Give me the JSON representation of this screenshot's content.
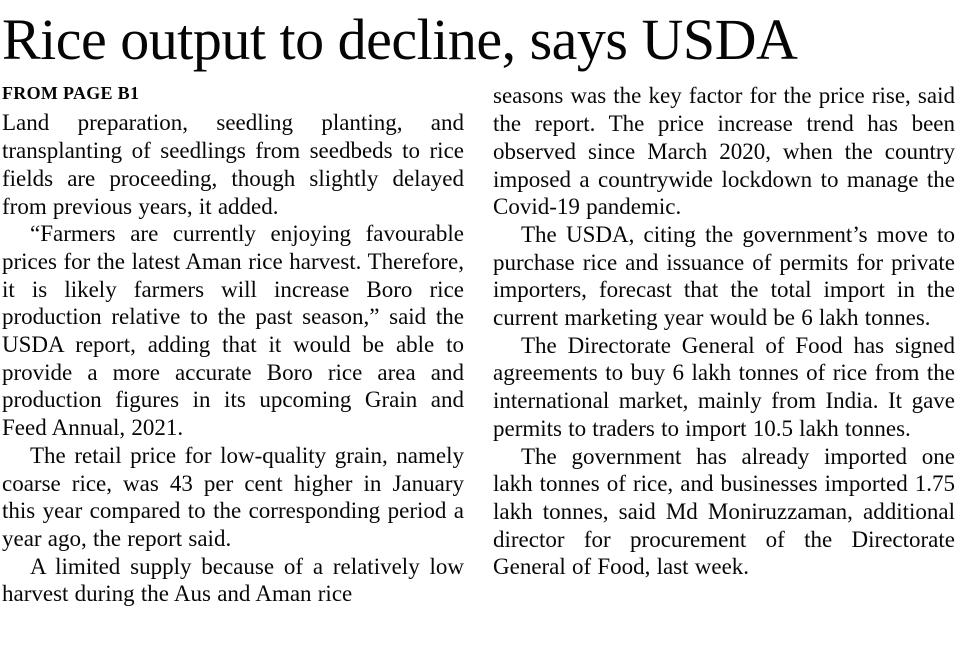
{
  "colors": {
    "background": "#ffffff",
    "text": "#060606"
  },
  "article": {
    "headline": "Rice output to decline, says USDA",
    "kicker": "FROM PAGE B1",
    "columns": {
      "left": [
        "Land preparation, seedling planting, and transplanting of seedlings from seedbeds to rice fields are proceeding, though slightly delayed from previous years, it added.",
        "“Farmers are currently enjoying favourable prices for the latest Aman rice harvest. Therefore, it is likely farmers will increase Boro rice production relative to the past season,” said the USDA report, adding that it would be able to provide a more accurate Boro rice area and production figures in its upcoming Grain and Feed Annual, 2021.",
        "The retail price for low-quality grain, namely coarse rice, was 43 per cent higher in January this year compared to the corresponding period a year ago, the report said.",
        "A limited supply because of a relatively low harvest during the Aus and Aman rice"
      ],
      "right": [
        "seasons was the key factor for the price rise, said the report. The price increase trend has been observed since March 2020, when the country imposed a countrywide lockdown to manage the Covid-19 pandemic.",
        "The USDA, citing the government’s move to purchase rice and issuance of permits for private importers, forecast that the total import in the current marketing year would be 6 lakh tonnes.",
        "The Directorate General of Food has signed agreements to buy 6 lakh tonnes of rice from the international market, mainly from India. It gave permits to traders to import 10.5 lakh tonnes.",
        "The government has already imported one lakh tonnes of rice, and businesses imported 1.75 lakh tonnes, said Md Moniruzzaman, additional director for procurement of the Directorate General of Food, last week."
      ]
    }
  }
}
